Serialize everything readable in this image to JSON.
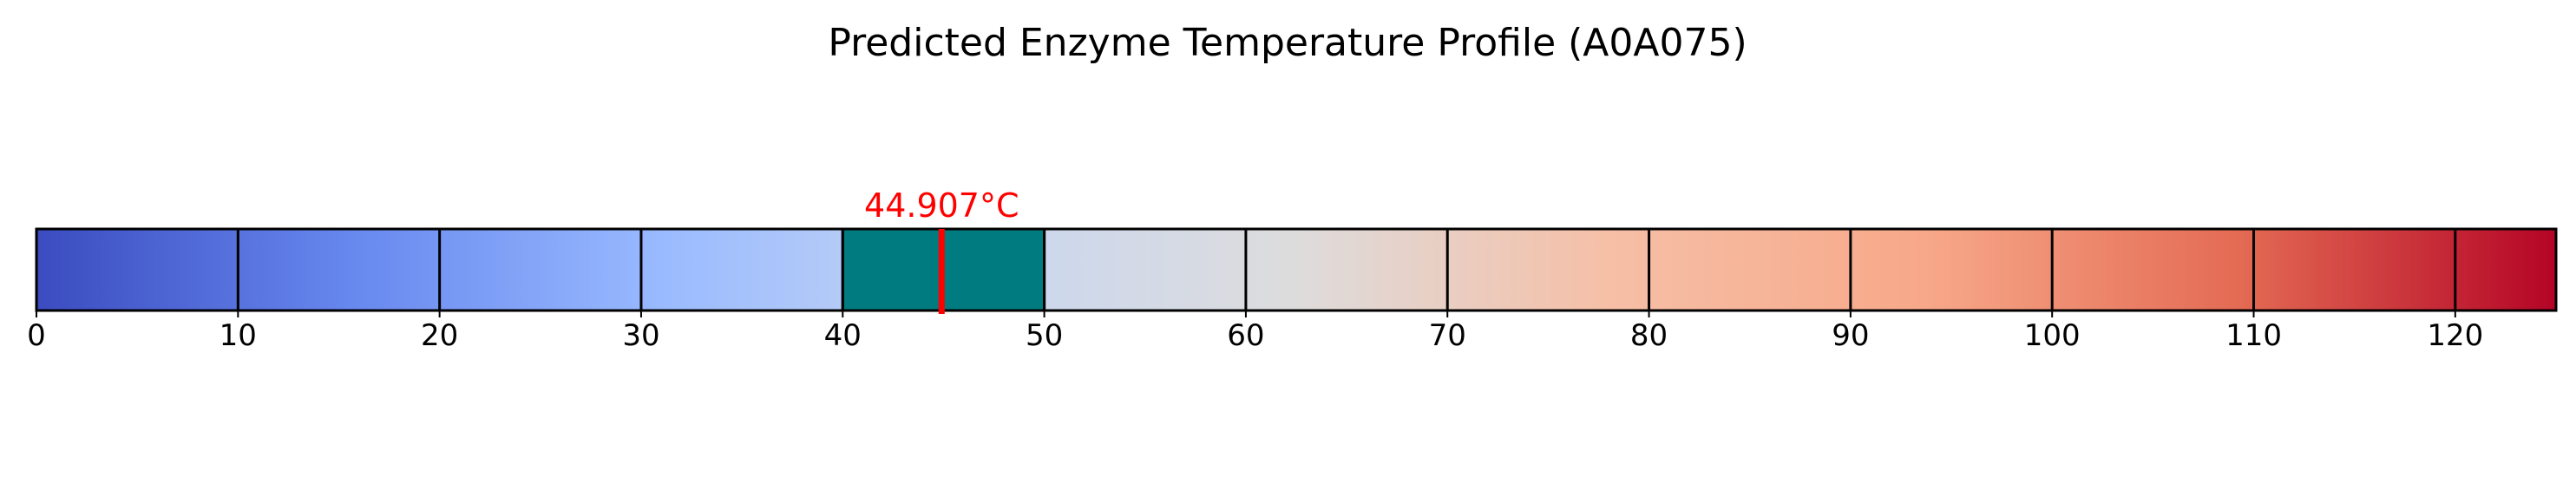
{
  "chart_data": {
    "type": "bar",
    "title": "Predicted Enzyme Temperature Profile (A0A075)",
    "xlabel": "",
    "ylabel": "",
    "xlim": [
      0,
      125
    ],
    "x_ticks": [
      0,
      10,
      20,
      30,
      40,
      50,
      60,
      70,
      80,
      90,
      100,
      110,
      120
    ],
    "x_tick_labels": [
      "0",
      "10",
      "20",
      "30",
      "40",
      "50",
      "60",
      "70",
      "80",
      "90",
      "100",
      "110",
      "120"
    ],
    "colormap": "coolwarm",
    "colormap_stops": [
      "#3b4cc0",
      "#6788ee",
      "#9abbff",
      "#c9d7f0",
      "#dddcdc",
      "#f6bfa6",
      "#f7a889",
      "#e36a53",
      "#b40426"
    ],
    "highlight_range": {
      "start": 40,
      "end": 50,
      "color": "#007b7f"
    },
    "predicted_value": 44.907,
    "predicted_label": "44.907°C",
    "marker_color": "#ff0000",
    "grid": false,
    "legend": "none"
  }
}
